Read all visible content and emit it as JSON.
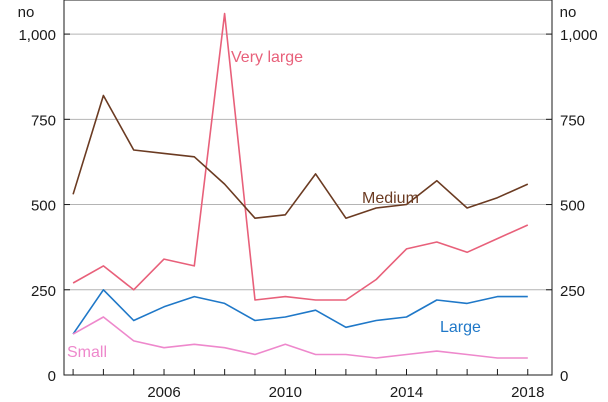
{
  "chart_data": {
    "type": "line",
    "left_unit": "no",
    "right_unit": "no",
    "ylim": [
      0,
      1100
    ],
    "yticks": [
      0,
      250,
      500,
      750,
      1000
    ],
    "ytick_labels": [
      "0",
      "250",
      "500",
      "750",
      "1,000"
    ],
    "xlim": [
      2002.7,
      2018.8
    ],
    "xticks": [
      2006,
      2010,
      2014,
      2018
    ],
    "xtick_labels": [
      "2006",
      "2010",
      "2014",
      "2018"
    ],
    "grid": true,
    "x": [
      2003,
      2004,
      2005,
      2006,
      2007,
      2008,
      2009,
      2010,
      2011,
      2012,
      2013,
      2014,
      2015,
      2016,
      2017,
      2018
    ],
    "series": [
      {
        "name": "Very large",
        "color": "#e8607a",
        "values": [
          270,
          320,
          250,
          340,
          320,
          1060,
          220,
          230,
          220,
          220,
          280,
          370,
          390,
          360,
          400,
          440
        ]
      },
      {
        "name": "Medium",
        "color": "#6b3b22",
        "values": [
          530,
          820,
          660,
          650,
          640,
          560,
          460,
          470,
          590,
          460,
          490,
          500,
          570,
          490,
          520,
          560
        ]
      },
      {
        "name": "Large",
        "color": "#1f78c8",
        "values": [
          120,
          250,
          160,
          200,
          230,
          210,
          160,
          170,
          190,
          140,
          160,
          170,
          220,
          210,
          230,
          230
        ]
      },
      {
        "name": "Small",
        "color": "#ee88cc",
        "values": [
          120,
          170,
          100,
          80,
          90,
          80,
          60,
          90,
          60,
          60,
          50,
          60,
          70,
          60,
          50,
          50
        ]
      }
    ]
  }
}
